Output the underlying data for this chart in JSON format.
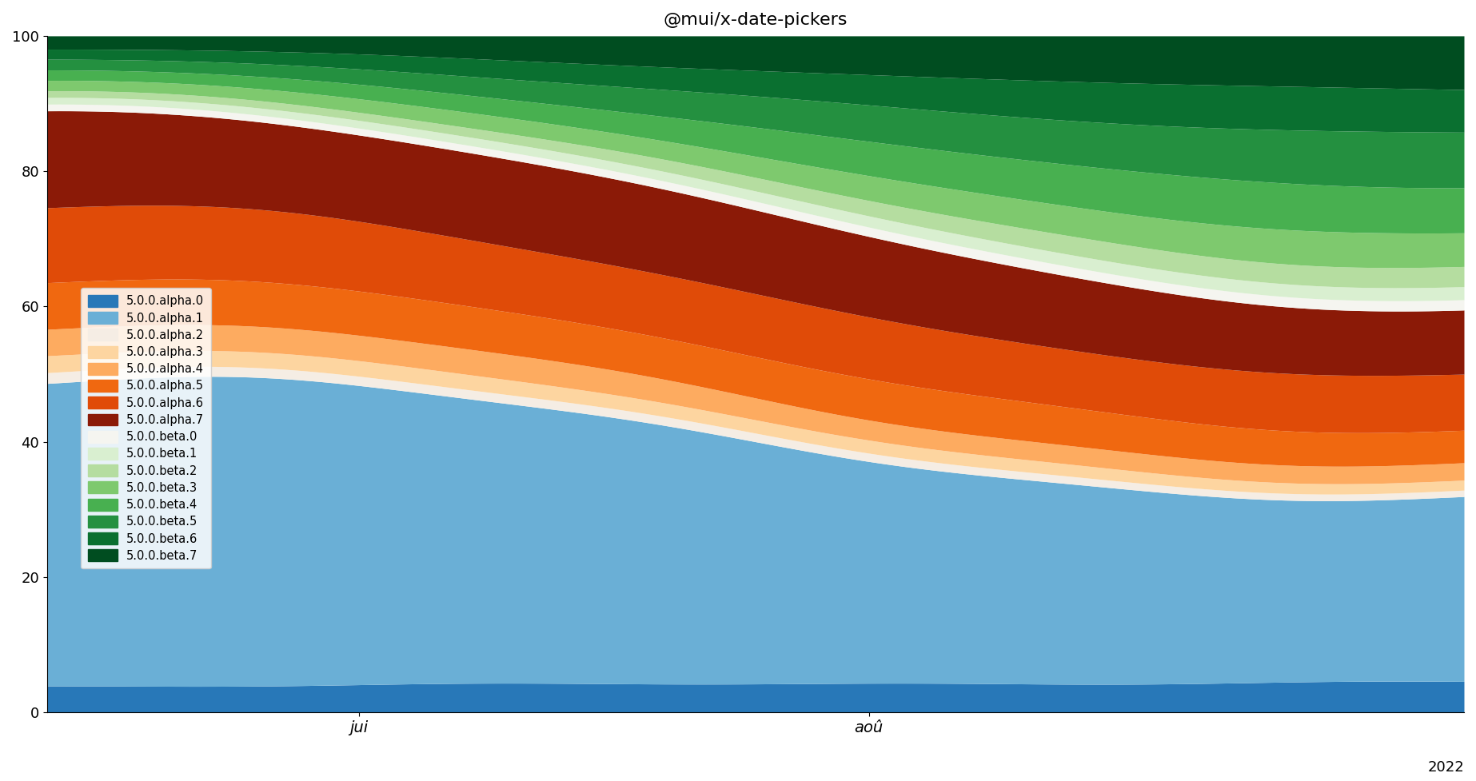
{
  "title": "@mui/x-date-pickers",
  "xlabel_ticks": [
    "jui",
    "aoû"
  ],
  "xlabel_tick_positions": [
    0.22,
    0.58
  ],
  "year_label": "2022",
  "ylim": [
    0,
    100
  ],
  "series": [
    {
      "label": "5.0.0.alpha.0",
      "color": "#2878b8"
    },
    {
      "label": "5.0.0.alpha.1",
      "color": "#6aafd6"
    },
    {
      "label": "5.0.0.alpha.2",
      "color": "#f5ede4"
    },
    {
      "label": "5.0.0.alpha.3",
      "color": "#fdd5a0"
    },
    {
      "label": "5.0.0.alpha.4",
      "color": "#fdab60"
    },
    {
      "label": "5.0.0.alpha.5",
      "color": "#f06810"
    },
    {
      "label": "5.0.0.alpha.6",
      "color": "#e04b08"
    },
    {
      "label": "5.0.0.alpha.7",
      "color": "#8b1a07"
    },
    {
      "label": "5.0.0.beta.0",
      "color": "#f5f5f0"
    },
    {
      "label": "5.0.0.beta.1",
      "color": "#d9efd0"
    },
    {
      "label": "5.0.0.beta.2",
      "color": "#b5dda0"
    },
    {
      "label": "5.0.0.beta.3",
      "color": "#7ec96e"
    },
    {
      "label": "5.0.0.beta.4",
      "color": "#48b050"
    },
    {
      "label": "5.0.0.beta.5",
      "color": "#249040"
    },
    {
      "label": "5.0.0.beta.6",
      "color": "#0a7030"
    },
    {
      "label": "5.0.0.beta.7",
      "color": "#004d20"
    }
  ],
  "n_points": 120,
  "background_color": "#ffffff",
  "weights_start": [
    4.0,
    45.0,
    1.5,
    2.5,
    4.0,
    7.0,
    11.0,
    14.0,
    1.0,
    1.0,
    1.0,
    1.5,
    1.5,
    1.5,
    1.5,
    2.0
  ],
  "weights_end": [
    4.5,
    27.0,
    1.0,
    1.5,
    2.5,
    5.0,
    8.0,
    10.0,
    1.5,
    2.0,
    3.0,
    5.0,
    7.0,
    8.0,
    6.5,
    8.0
  ],
  "noise_seed": 7
}
